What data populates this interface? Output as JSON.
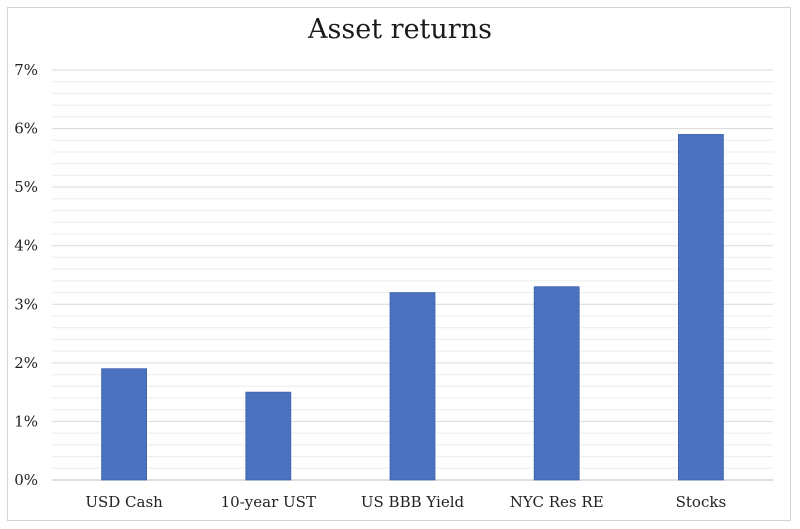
{
  "chart_data": {
    "type": "bar",
    "title": "Asset returns",
    "categories": [
      "USD Cash",
      "10-year UST",
      "US BBB Yield",
      "NYC Res RE",
      "Stocks"
    ],
    "values": [
      1.9,
      1.5,
      3.2,
      3.3,
      5.9
    ],
    "ylim": [
      0,
      7
    ],
    "yticks": [
      "0%",
      "1%",
      "2%",
      "3%",
      "4%",
      "5%",
      "6%",
      "7%"
    ],
    "xlabel": "",
    "ylabel": "",
    "grid": true,
    "legend": "none",
    "bar_color": "#4a72bf",
    "grid_color": "#d9d9d9",
    "minor_grid_color": "#ececec"
  }
}
